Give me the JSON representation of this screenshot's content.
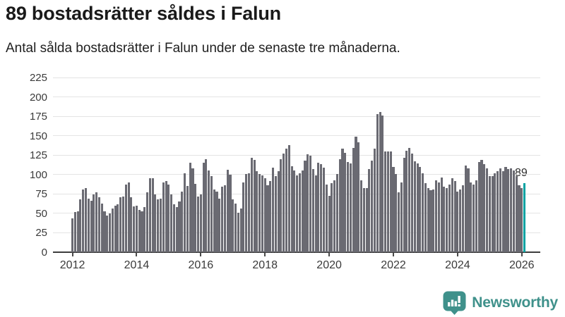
{
  "header": {
    "title": "89 bostadsrätter såldes i Falun",
    "subtitle": "Antal sålda bostadsrätter i Falun under de senaste tre månaderna."
  },
  "chart_data": {
    "type": "bar",
    "title": "89 bostadsrätter såldes i Falun",
    "subtitle": "Antal sålda bostadsrätter i Falun under de senaste tre månaderna.",
    "frequency": "monthly",
    "x_start": "2012-01",
    "xtick_labels": [
      "2012",
      "2014",
      "2016",
      "2018",
      "2020",
      "2022",
      "2024",
      "2026"
    ],
    "ytick_values": [
      0,
      25,
      50,
      75,
      100,
      125,
      150,
      175,
      200,
      225
    ],
    "ylim": [
      0,
      225
    ],
    "grid": true,
    "bar_color": "#6a6a72",
    "values": [
      44,
      52,
      53,
      68,
      81,
      83,
      69,
      66,
      74,
      77,
      71,
      63,
      53,
      47,
      50,
      56,
      60,
      62,
      71,
      72,
      87,
      90,
      71,
      59,
      60,
      54,
      53,
      58,
      77,
      95,
      95,
      74,
      68,
      69,
      90,
      92,
      87,
      74,
      62,
      58,
      65,
      78,
      102,
      85,
      115,
      108,
      88,
      72,
      74,
      115,
      120,
      105,
      98,
      81,
      78,
      69,
      84,
      86,
      106,
      100,
      68,
      63,
      51,
      56,
      90,
      101,
      102,
      122,
      119,
      104,
      101,
      99,
      95,
      86,
      92,
      109,
      98,
      104,
      120,
      127,
      133,
      138,
      111,
      105,
      99,
      102,
      105,
      118,
      126,
      124,
      107,
      99,
      115,
      113,
      109,
      87,
      73,
      89,
      93,
      101,
      120,
      133,
      128,
      116,
      114,
      134,
      149,
      142,
      93,
      83,
      83,
      107,
      118,
      133,
      178,
      181,
      176,
      130,
      130,
      130,
      110,
      101,
      77,
      90,
      122,
      131,
      134,
      127,
      117,
      114,
      110,
      102,
      89,
      83,
      80,
      81,
      93,
      90,
      96,
      84,
      83,
      87,
      95,
      92,
      78,
      81,
      86,
      112,
      108,
      90,
      87,
      93,
      116,
      119,
      113,
      108,
      98,
      98,
      102,
      104,
      108,
      104,
      110,
      107,
      108,
      105,
      98,
      86,
      83,
      89
    ],
    "highlight": {
      "index": 169,
      "label": "89",
      "color": "#00a2a2"
    }
  },
  "footer": {
    "brand": "Newsworthy",
    "brand_color": "#3f918b"
  }
}
